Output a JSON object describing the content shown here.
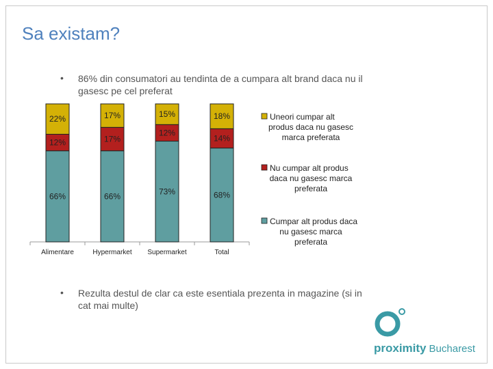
{
  "title": "Sa existam?",
  "bullets": [
    {
      "text_line1": "86% din consumatori au tendinta de a cumpara alt brand daca nu il",
      "text_line2": "gasesc pe cel preferat"
    },
    {
      "text_line1": "Rezulta destul de clar ca este esentiala prezenta in magazine (si in",
      "text_line2": "cat mai multe)"
    }
  ],
  "bullet_glyph": "•",
  "logo": {
    "brand": "proximity",
    "city": "Bucharest",
    "color": "#3a9aa5"
  },
  "chart_data": {
    "type": "bar",
    "stacked": true,
    "categories": [
      "Alimentare",
      "Hypermarket",
      "Supermarket",
      "Total"
    ],
    "ylim": [
      0,
      100
    ],
    "series": [
      {
        "name": "Cumpar alt produs daca nu gasesc marca preferata",
        "values": [
          66,
          66,
          73,
          68
        ],
        "labels": [
          "66%",
          "66%",
          "73%",
          "68%"
        ],
        "color": "#5f9ea0"
      },
      {
        "name": "Nu cumpar alt produs daca nu gasesc marca preferata",
        "values": [
          12,
          17,
          12,
          14
        ],
        "labels": [
          "12%",
          "17%",
          "12%",
          "14%"
        ],
        "color": "#b3201e"
      },
      {
        "name": "Uneori cumpar alt produs daca nu gasesc marca preferata",
        "values": [
          22,
          17,
          15,
          18
        ],
        "labels": [
          "22%",
          "17%",
          "15%",
          "18%"
        ],
        "color": "#d4b106"
      }
    ],
    "legend": {
      "position": "right",
      "items": [
        {
          "lines": [
            "Uneori cumpar alt",
            "produs daca nu gasesc",
            "marca preferata"
          ],
          "color": "#d4b106"
        },
        {
          "lines": [
            "Nu cumpar alt produs",
            "daca nu gasesc marca",
            "preferata"
          ],
          "color": "#b3201e"
        },
        {
          "lines": [
            "Cumpar alt produs daca",
            "nu gasesc marca",
            "preferata"
          ],
          "color": "#5f9ea0"
        }
      ]
    }
  }
}
